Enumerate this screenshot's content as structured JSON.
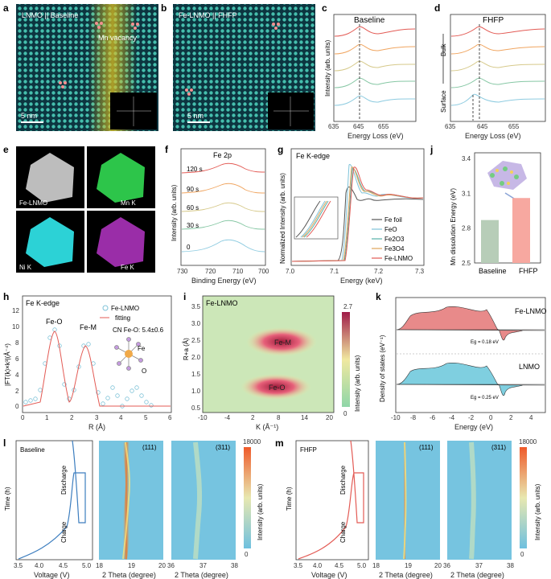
{
  "panels": {
    "a": {
      "letter": "a",
      "title": "LNMO || Baseline",
      "annotation": "Mn vacancy",
      "scale": "5 nm"
    },
    "b": {
      "letter": "b",
      "title": "Fe-LNMO || FHFP",
      "scale": "5 nm"
    },
    "c": {
      "letter": "c",
      "title": "Baseline",
      "xlabel": "Energy Loss (eV)",
      "ylabel": "Intensity (arb. units)",
      "xticks": [
        "635",
        "645",
        "655"
      ]
    },
    "d": {
      "letter": "d",
      "title": "FHFP",
      "xlabel": "Energy Loss (eV)",
      "bulk": "Bulk",
      "surface": "Surface",
      "xticks": [
        "635",
        "645",
        "655"
      ]
    },
    "e": {
      "letter": "e",
      "maps": [
        "Fe-LNMO",
        "Mn K",
        "Ni K",
        "Fe K"
      ]
    },
    "f": {
      "letter": "f",
      "title": "Fe 2p",
      "xlabel": "Binding Energy (eV)",
      "ylabel": "Intensity (arb. units)",
      "times": [
        "120 s",
        "90 s",
        "60 s",
        "30 s",
        "0"
      ],
      "xticks": [
        "730",
        "720",
        "710",
        "700"
      ]
    },
    "g": {
      "letter": "g",
      "title": "Fe K-edge",
      "xlabel": "Energy (keV)",
      "ylabel": "Normalized Intensity (arb. units)",
      "legend": [
        "Fe foil",
        "FeO",
        "Fe2O3",
        "Fe3O4",
        "Fe-LNMO"
      ],
      "xticks": [
        "7.0",
        "7.1",
        "7.2",
        "7.3"
      ]
    },
    "h": {
      "letter": "h",
      "title": "Fe K-edge",
      "xlabel": "R (Å)",
      "ylabel": "|FT(k)×k³|(Å⁻⁴)",
      "legend": [
        "Fe-LNMO",
        "fitting"
      ],
      "cn": "CN Fe-O: 5.4±0.6",
      "peak1": "Fe-O",
      "peak2": "Fe-M",
      "fe": "Fe",
      "o": "O",
      "xticks": [
        "0",
        "1",
        "2",
        "3",
        "4",
        "5",
        "6"
      ],
      "yticks": [
        "0",
        "2",
        "4",
        "6",
        "8",
        "10",
        "12"
      ]
    },
    "i": {
      "letter": "i",
      "title": "Fe-LNMO",
      "xlabel": "K (Å⁻¹)",
      "ylabel": "R+a (Å)",
      "colorbar_label": "Intensity (arb. units)",
      "cmax": "2.7",
      "cmin": "0",
      "peak1": "Fe-M",
      "peak2": "Fe-O",
      "xticks": [
        "-10",
        "-4",
        "2",
        "8",
        "14",
        "20"
      ],
      "yticks": [
        "0.5",
        "1.0",
        "1.5",
        "2.0",
        "2.5",
        "3.0",
        "3.5"
      ]
    },
    "j": {
      "letter": "j",
      "ylabel": "Mn dissolution Energy (eV)",
      "categories": [
        "Baseline",
        "FHFP"
      ],
      "yticks": [
        "2.5",
        "2.8",
        "3.1",
        "3.4"
      ]
    },
    "k": {
      "letter": "k",
      "xlabel": "Energy (eV)",
      "ylabel": "Density of states (eV⁻¹)",
      "top": "Fe-LNMO",
      "bottom": "LNMO",
      "eg_top": "Eg = 0.18 eV",
      "eg_bottom": "Eg = 0.25 eV",
      "xticks": [
        "-10",
        "-8",
        "-6",
        "-4",
        "-2",
        "0",
        "2",
        "4"
      ]
    },
    "l": {
      "letter": "l",
      "title": "Baseline",
      "ylabel": "Time (h)",
      "xlabel1": "Voltage (V)",
      "xlabel2": "2 Theta (degree)",
      "xlabel3": "2 Theta (degree)",
      "charge": "Charge",
      "discharge": "Discharge",
      "hkl1": "(111)",
      "hkl2": "(311)",
      "cbar_label": "Intensity (arb. units)",
      "cmax": "18000",
      "cmin": "0",
      "vticks": [
        "3.5",
        "4.0",
        "4.5",
        "5.0"
      ],
      "t1": [
        "18",
        "19",
        "20"
      ],
      "t2": [
        "36",
        "37",
        "38"
      ]
    },
    "m": {
      "letter": "m",
      "title": "FHFP",
      "ylabel": "Time (h)",
      "xlabel1": "Voltage (V)",
      "xlabel2": "2 Theta (degree)",
      "xlabel3": "2 Theta (degree)",
      "charge": "Charge",
      "discharge": "Discharge",
      "hkl1": "(111)",
      "hkl2": "(311)",
      "cbar_label": "Intensity (arb. units)",
      "cmax": "18000",
      "cmin": "0",
      "vticks": [
        "3.5",
        "4.0",
        "4.5",
        "5.0"
      ],
      "t1": [
        "18",
        "19",
        "20"
      ],
      "t2": [
        "36",
        "37",
        "38"
      ]
    }
  },
  "chart_data": [
    {
      "type": "bar",
      "panel": "j",
      "categories": [
        "Baseline",
        "FHFP"
      ],
      "values": [
        2.87,
        3.06
      ],
      "ylim": [
        2.5,
        3.45
      ],
      "ylabel": "Mn dissolution Energy (eV)",
      "colors": [
        "#b7cdb8",
        "#f7a8a0"
      ]
    },
    {
      "type": "line",
      "panel": "g",
      "title": "Fe K-edge",
      "series": [
        "Fe foil",
        "FeO",
        "Fe2O3",
        "Fe3O4",
        "Fe-LNMO"
      ],
      "xlim": [
        7.0,
        7.3
      ],
      "colors": [
        "#555555",
        "#7fc3d8",
        "#58b0a8",
        "#e0a55a",
        "#e35b55"
      ]
    },
    {
      "type": "line",
      "panel": "f",
      "title": "Fe 2p",
      "series": [
        "120 s",
        "90 s",
        "60 s",
        "30 s",
        "0"
      ],
      "xlim": [
        730,
        700
      ],
      "colors": [
        "#e35b55",
        "#f0a560",
        "#d6c98a",
        "#86c7a4",
        "#8dcbe0"
      ]
    }
  ]
}
